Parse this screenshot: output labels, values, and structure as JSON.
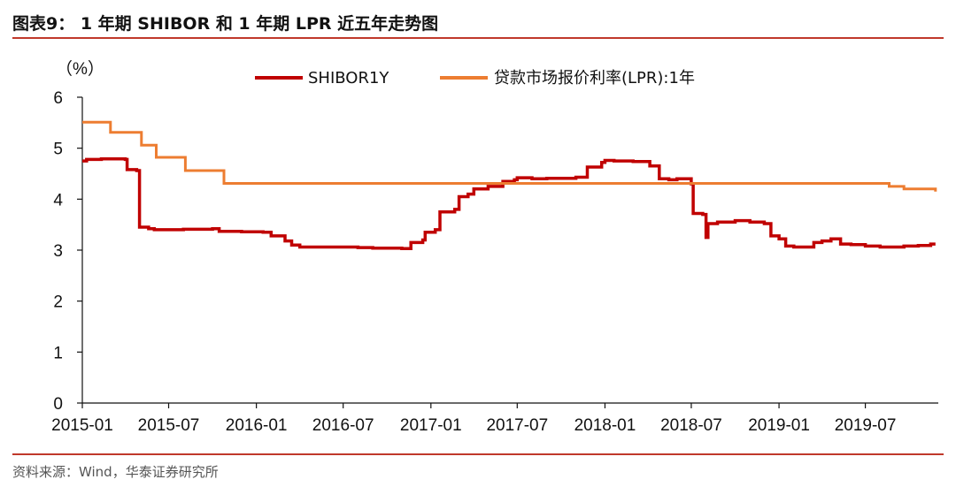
{
  "header": {
    "title": "图表9：  1 年期 SHIBOR 和 1 年期 LPR 近五年走势图"
  },
  "footer": {
    "source": "资料来源：Wind，华泰证券研究所"
  },
  "chart_data": {
    "type": "line",
    "ylabel": "（%）",
    "ylim": [
      0,
      6
    ],
    "yticks": [
      "0",
      "1",
      "2",
      "3",
      "4",
      "5",
      "6"
    ],
    "xlim": [
      "2015-01",
      "2019-12"
    ],
    "xticks": [
      "2015-01",
      "2015-07",
      "2016-01",
      "2016-07",
      "2017-01",
      "2017-07",
      "2018-01",
      "2018-07",
      "2019-01",
      "2019-07"
    ],
    "grid": false,
    "legend_position": "top",
    "series": [
      {
        "name": "SHIBOR1Y",
        "color": "#c00000",
        "style": "step",
        "points": [
          [
            "2015-01",
            4.75
          ],
          [
            "2015-01-10",
            4.78
          ],
          [
            "2015-02-10",
            4.79
          ],
          [
            "2015-04-01",
            4.78
          ],
          [
            "2015-04-05",
            4.58
          ],
          [
            "2015-04-25",
            4.56
          ],
          [
            "2015-05-01",
            3.45
          ],
          [
            "2015-05-20",
            3.42
          ],
          [
            "2015-06-01",
            3.4
          ],
          [
            "2015-08-01",
            3.41
          ],
          [
            "2015-10-01",
            3.42
          ],
          [
            "2015-10-15",
            3.37
          ],
          [
            "2015-12-01",
            3.36
          ],
          [
            "2016-01-15",
            3.35
          ],
          [
            "2016-02-01",
            3.28
          ],
          [
            "2016-03-01",
            3.18
          ],
          [
            "2016-03-15",
            3.1
          ],
          [
            "2016-04-01",
            3.06
          ],
          [
            "2016-06-01",
            3.06
          ],
          [
            "2016-08-01",
            3.05
          ],
          [
            "2016-09-01",
            3.04
          ],
          [
            "2016-11-01",
            3.03
          ],
          [
            "2016-11-20",
            3.15
          ],
          [
            "2016-12-15",
            3.2
          ],
          [
            "2016-12-20",
            3.35
          ],
          [
            "2017-01-10",
            3.4
          ],
          [
            "2017-01-20",
            3.75
          ],
          [
            "2017-02-20",
            3.8
          ],
          [
            "2017-03-01",
            4.05
          ],
          [
            "2017-03-20",
            4.1
          ],
          [
            "2017-04-01",
            4.2
          ],
          [
            "2017-05-01",
            4.25
          ],
          [
            "2017-06-01",
            4.35
          ],
          [
            "2017-06-25",
            4.38
          ],
          [
            "2017-07-01",
            4.42
          ],
          [
            "2017-08-01",
            4.4
          ],
          [
            "2017-09-01",
            4.41
          ],
          [
            "2017-11-01",
            4.43
          ],
          [
            "2017-11-25",
            4.63
          ],
          [
            "2017-12-25",
            4.72
          ],
          [
            "2018-01-01",
            4.76
          ],
          [
            "2018-01-20",
            4.75
          ],
          [
            "2018-03-01",
            4.74
          ],
          [
            "2018-04-05",
            4.65
          ],
          [
            "2018-04-25",
            4.4
          ],
          [
            "2018-05-15",
            4.38
          ],
          [
            "2018-06-01",
            4.4
          ],
          [
            "2018-07-01",
            4.3
          ],
          [
            "2018-07-05",
            3.72
          ],
          [
            "2018-07-25",
            3.7
          ],
          [
            "2018-08-01",
            3.25
          ],
          [
            "2018-08-05",
            3.52
          ],
          [
            "2018-08-25",
            3.55
          ],
          [
            "2018-10-01",
            3.58
          ],
          [
            "2018-11-01",
            3.55
          ],
          [
            "2018-12-01",
            3.52
          ],
          [
            "2018-12-15",
            3.28
          ],
          [
            "2019-01-01",
            3.22
          ],
          [
            "2019-01-15",
            3.08
          ],
          [
            "2019-02-01",
            3.06
          ],
          [
            "2019-03-15",
            3.15
          ],
          [
            "2019-04-01",
            3.18
          ],
          [
            "2019-04-20",
            3.22
          ],
          [
            "2019-05-10",
            3.12
          ],
          [
            "2019-06-01",
            3.11
          ],
          [
            "2019-07-01",
            3.08
          ],
          [
            "2019-08-01",
            3.06
          ],
          [
            "2019-09-20",
            3.08
          ],
          [
            "2019-10-20",
            3.09
          ],
          [
            "2019-11-15",
            3.12
          ],
          [
            "2019-11-25",
            3.12
          ]
        ]
      },
      {
        "name": "贷款市场报价利率(LPR):1年",
        "color": "#ed7d31",
        "style": "step",
        "points": [
          [
            "2015-01",
            5.51
          ],
          [
            "2015-02-20",
            5.51
          ],
          [
            "2015-03-01",
            5.31
          ],
          [
            "2015-05-01",
            5.31
          ],
          [
            "2015-05-05",
            5.06
          ],
          [
            "2015-06-01",
            5.06
          ],
          [
            "2015-06-05",
            4.82
          ],
          [
            "2015-08-01",
            4.82
          ],
          [
            "2015-08-05",
            4.56
          ],
          [
            "2015-10-01",
            4.56
          ],
          [
            "2015-10-25",
            4.31
          ],
          [
            "2019-08-01",
            4.31
          ],
          [
            "2019-08-20",
            4.25
          ],
          [
            "2019-09-20",
            4.2
          ],
          [
            "2019-11-20",
            4.2
          ],
          [
            "2019-11-25",
            4.15
          ]
        ]
      }
    ]
  }
}
